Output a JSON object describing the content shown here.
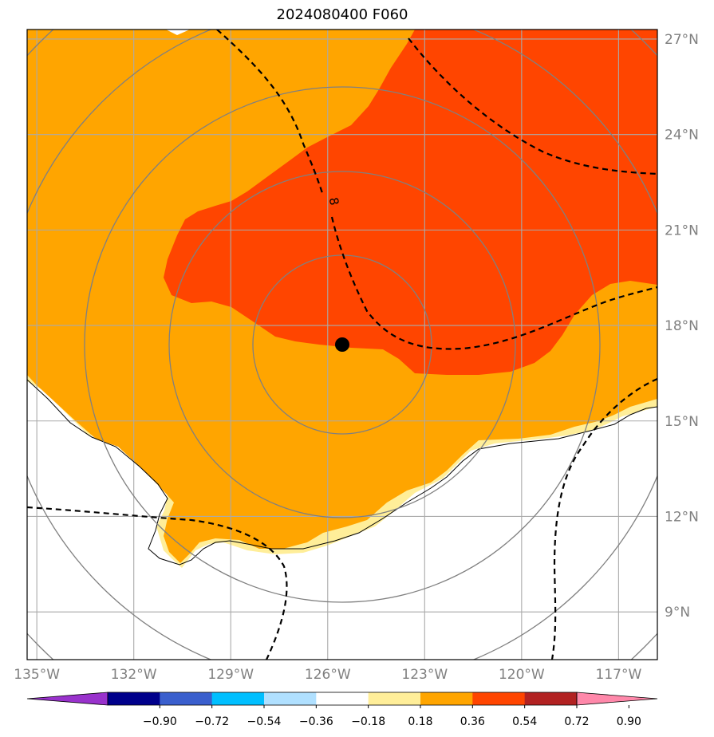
{
  "title": "2024080400 F060",
  "map": {
    "lon_range": [
      -135.3,
      -115.8
    ],
    "lat_range": [
      7.5,
      27.3
    ],
    "lon_ticks": [
      {
        "value": -135,
        "label": "135°W"
      },
      {
        "value": -132,
        "label": "132°W"
      },
      {
        "value": -129,
        "label": "129°W"
      },
      {
        "value": -126,
        "label": "126°W"
      },
      {
        "value": -123,
        "label": "123°W"
      },
      {
        "value": -120,
        "label": "120°W"
      },
      {
        "value": -117,
        "label": "117°W"
      }
    ],
    "lat_ticks": [
      {
        "value": 9,
        "label": "9°N"
      },
      {
        "value": 12,
        "label": "12°N"
      },
      {
        "value": 15,
        "label": "15°N"
      },
      {
        "value": 18,
        "label": "18°N"
      },
      {
        "value": 21,
        "label": "21°N"
      },
      {
        "value": 24,
        "label": "24°N"
      },
      {
        "value": 27,
        "label": "27°N"
      }
    ],
    "grid": true,
    "storm_center": {
      "lon": -125.3,
      "lat": 17.4
    },
    "contour_label": "8"
  },
  "colorbar": {
    "ticks": [
      "−0.90",
      "−0.72",
      "−0.54",
      "−0.36",
      "−0.18",
      "0.18",
      "0.36",
      "0.54",
      "0.72",
      "0.90"
    ],
    "colors": [
      "#9932cc",
      "#00008b",
      "#3a5fcd",
      "#00bfff",
      "#b0e0ff",
      "#ffffff",
      "#ffee99",
      "#ffa500",
      "#ff4500",
      "#b22222",
      "#ff88aa"
    ]
  },
  "colors": {
    "field_054_072": "#ffa500",
    "field_072_090": "#ff4500",
    "field_036_054": "#ffee99",
    "grid": "#aaaaaa",
    "range_rings": "#808080"
  }
}
